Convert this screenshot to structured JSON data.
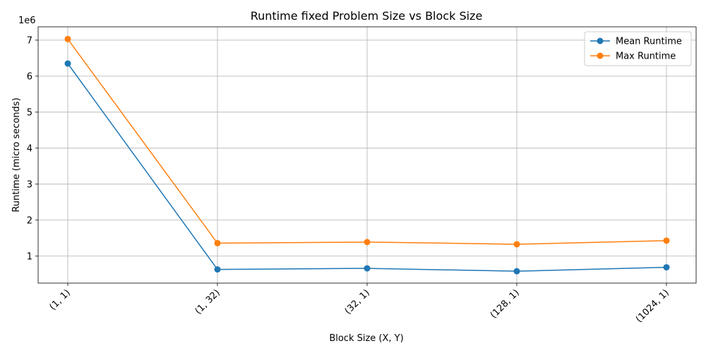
{
  "chart_data": {
    "type": "line",
    "title": "Runtime fixed Problem Size vs Block Size",
    "xlabel": "Block Size (X, Y)",
    "ylabel": "Runtime (micro seconds)",
    "y_offset_label": "1e6",
    "categories": [
      "(1, 1)",
      "(1, 32)",
      "(32, 1)",
      "(128, 1)",
      "(1024, 1)"
    ],
    "series": [
      {
        "name": "Mean Runtime",
        "color": "#1f77b4",
        "values": [
          6350000,
          630000,
          660000,
          580000,
          690000
        ]
      },
      {
        "name": "Max Runtime",
        "color": "#ff7f0e",
        "values": [
          7030000,
          1360000,
          1390000,
          1330000,
          1430000
        ]
      }
    ],
    "yticks": [
      1,
      2,
      3,
      4,
      5,
      6,
      7
    ],
    "ytick_scale": 1000000,
    "ylim": [
      250000,
      7370000
    ],
    "grid": true,
    "legend_position": "top-right"
  }
}
